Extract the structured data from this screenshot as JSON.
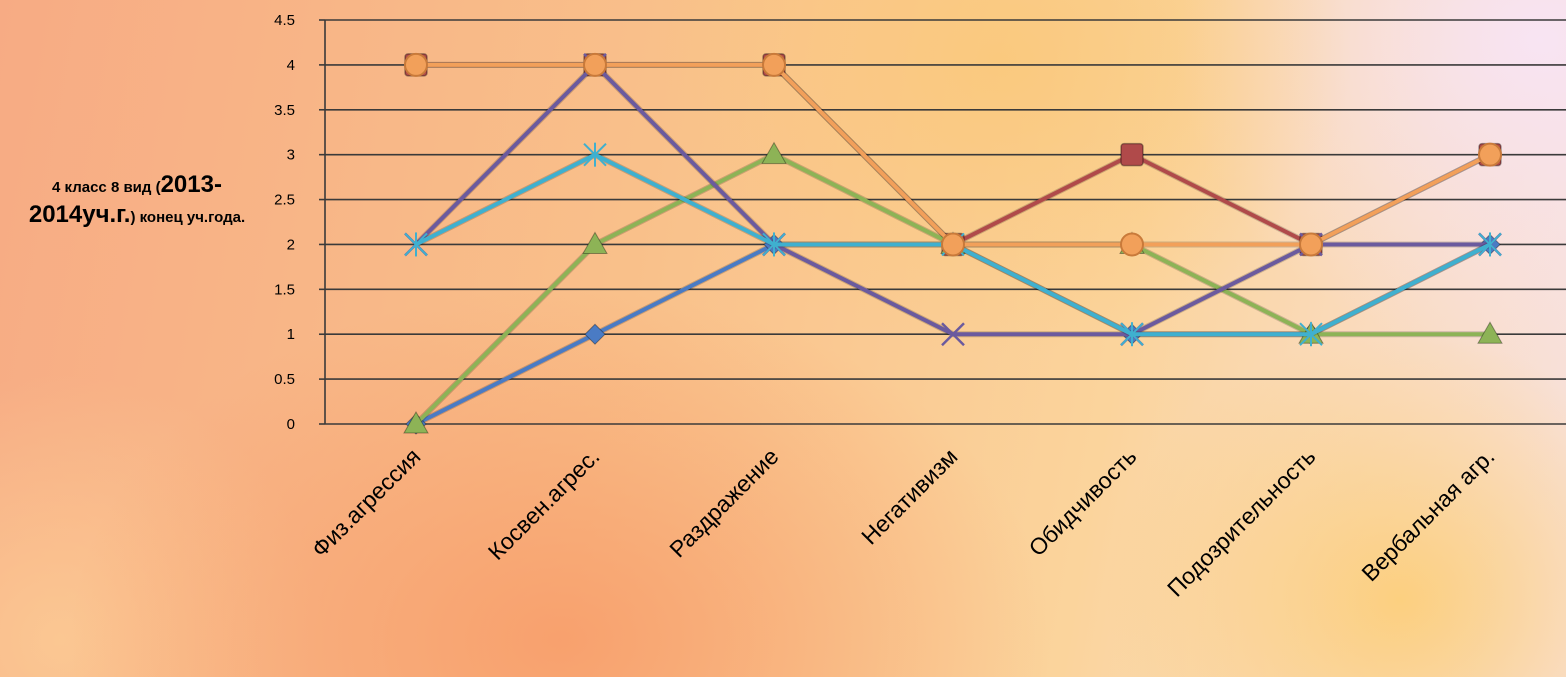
{
  "chart_data": {
    "type": "line",
    "title": "",
    "ylabel_parts": [
      {
        "text": "4 класс 8 вид (",
        "size": "s"
      },
      {
        "text": "2013-2014уч.г.",
        "size": "b"
      },
      {
        "text": ") конец уч.года.",
        "size": "s"
      }
    ],
    "categories": [
      "Физ.агрессия",
      "Косвен.агрес.",
      "Раздражение",
      "Негативизм",
      "Обидчивость",
      "Подозрительность",
      "Вербальная агр."
    ],
    "y_ticks": [
      "0",
      "0.5",
      "1",
      "1.5",
      "2",
      "2.5",
      "3",
      "3.5",
      "4",
      "4.5"
    ],
    "ylim": [
      0,
      4.5
    ],
    "grid": true,
    "series": [
      {
        "values": [
          0,
          1,
          2,
          2,
          1,
          1,
          2
        ],
        "color": "#4a7bc4",
        "marker": "diamond"
      },
      {
        "values": [
          4,
          4,
          4,
          2,
          3,
          2,
          3
        ],
        "color": "#b04a4a",
        "marker": "square"
      },
      {
        "values": [
          0,
          2,
          3,
          2,
          2,
          1,
          1
        ],
        "color": "#8db356",
        "marker": "triangle"
      },
      {
        "values": [
          2,
          4,
          2,
          1,
          1,
          2,
          2
        ],
        "color": "#6b5a9e",
        "marker": "x"
      },
      {
        "values": [
          2,
          3,
          2,
          2,
          1,
          1,
          2
        ],
        "color": "#3fb0cf",
        "marker": "star"
      },
      {
        "values": [
          4,
          4,
          4,
          2,
          2,
          2,
          3
        ],
        "color": "#f2a05a",
        "marker": "circle"
      }
    ]
  }
}
